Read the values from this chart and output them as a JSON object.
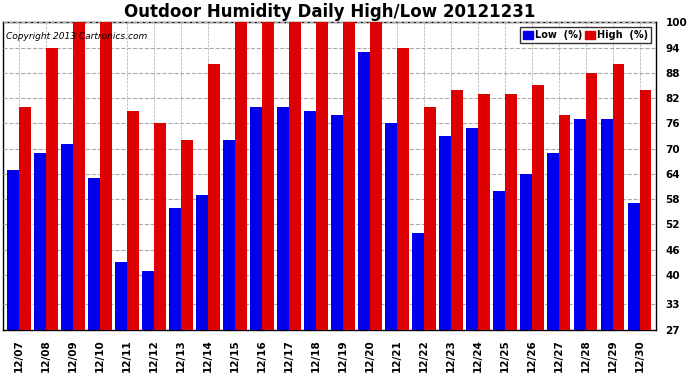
{
  "title": "Outdoor Humidity Daily High/Low 20121231",
  "copyright": "Copyright 2013 Cartronics.com",
  "dates": [
    "12/07",
    "12/08",
    "12/09",
    "12/10",
    "12/11",
    "12/12",
    "12/13",
    "12/14",
    "12/15",
    "12/16",
    "12/17",
    "12/18",
    "12/19",
    "12/20",
    "12/21",
    "12/22",
    "12/23",
    "12/24",
    "12/25",
    "12/26",
    "12/27",
    "12/28",
    "12/29",
    "12/30"
  ],
  "high_values": [
    80,
    94,
    100,
    100,
    79,
    76,
    72,
    90,
    100,
    100,
    100,
    100,
    100,
    100,
    94,
    80,
    84,
    83,
    83,
    85,
    78,
    88,
    90,
    84
  ],
  "low_values": [
    65,
    69,
    71,
    63,
    43,
    41,
    56,
    59,
    72,
    80,
    80,
    79,
    78,
    93,
    76,
    50,
    73,
    75,
    60,
    64,
    69,
    77,
    77,
    57
  ],
  "y_ticks": [
    27,
    33,
    40,
    46,
    52,
    58,
    64,
    70,
    76,
    82,
    88,
    94,
    100
  ],
  "y_min": 27,
  "y_max": 100,
  "bar_width": 0.44,
  "low_color": "#0000EE",
  "high_color": "#DD0000",
  "bg_color": "#FFFFFF",
  "grid_color": "#AAAAAA",
  "title_fontsize": 12,
  "tick_fontsize": 7.5,
  "legend_low_label": "Low  (%)",
  "legend_high_label": "High  (%)"
}
